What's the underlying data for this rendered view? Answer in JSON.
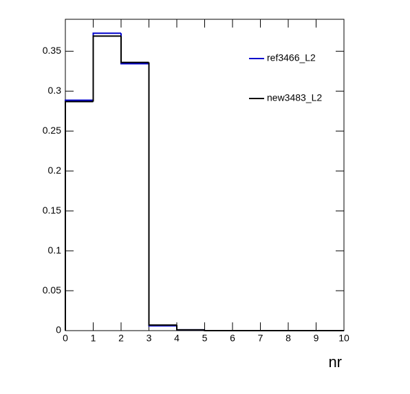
{
  "chart_data": {
    "type": "histogram",
    "xlabel": "nr",
    "bins": [
      0,
      1,
      2,
      3,
      4,
      5,
      6,
      7,
      8,
      9,
      10
    ],
    "series": [
      {
        "name": "ref3466_L2",
        "color": "#0000cc",
        "values": [
          0.2886,
          0.3725,
          0.3344,
          0.006,
          0.001,
          0,
          0,
          0,
          0,
          0
        ]
      },
      {
        "name": "new3483_L2",
        "color": "#000000",
        "values": [
          0.2869,
          0.369,
          0.336,
          0.007,
          0.001,
          0,
          0,
          0,
          0,
          0
        ]
      }
    ],
    "xlim": [
      0,
      10
    ],
    "xticks": [
      0,
      1,
      2,
      3,
      4,
      5,
      6,
      7,
      8,
      9,
      10
    ],
    "ylim": [
      0,
      0.39
    ],
    "yticks": [
      0,
      0.05,
      0.1,
      0.15,
      0.2,
      0.25,
      0.3,
      0.35
    ],
    "grid": false
  }
}
